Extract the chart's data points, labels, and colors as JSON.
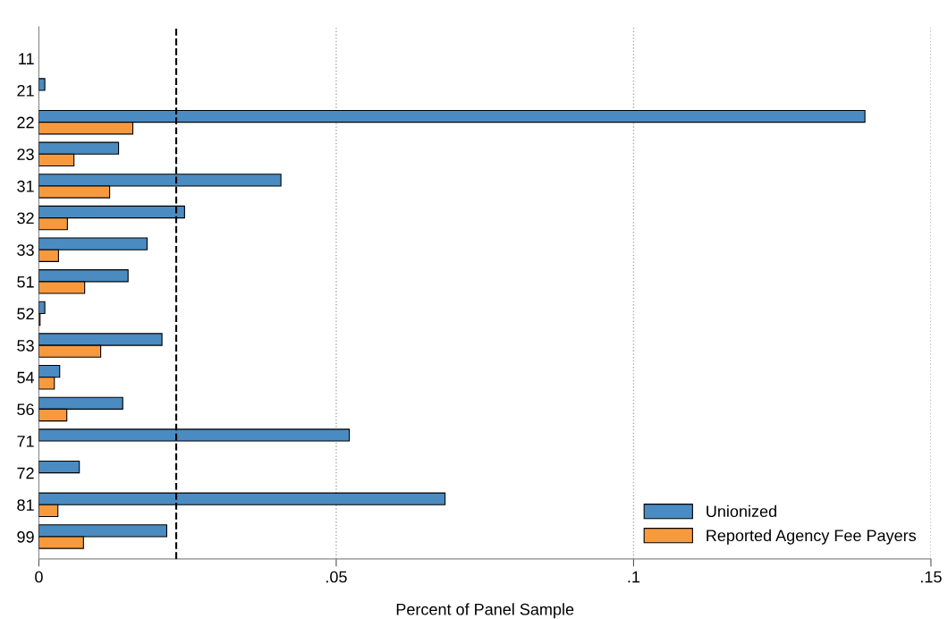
{
  "chart_data": {
    "type": "bar",
    "orientation": "horizontal",
    "xlabel": "Percent of Panel Sample",
    "categories": [
      "11",
      "21",
      "22",
      "23",
      "31",
      "32",
      "33",
      "51",
      "52",
      "53",
      "54",
      "56",
      "71",
      "72",
      "81",
      "99"
    ],
    "series": [
      {
        "name": "Unionized",
        "color": "#4a8bc2",
        "values": [
          0,
          0.001,
          0.1389,
          0.0134,
          0.0407,
          0.0245,
          0.0182,
          0.015,
          0.001,
          0.0207,
          0.0035,
          0.0141,
          0.0522,
          0.0068,
          0.0683,
          0.0215
        ]
      },
      {
        "name": "Reported Agency Fee Payers",
        "color": "#f79a3e",
        "values": [
          0,
          0,
          0.0158,
          0.0059,
          0.0119,
          0.0048,
          0.0033,
          0.0077,
          0.0002,
          0.0104,
          0.0026,
          0.0047,
          0,
          0,
          0.0032,
          0.0075
        ]
      }
    ],
    "xlim": [
      0,
      0.15
    ],
    "xticks": [
      0,
      {
        "value": 0.05,
        "label": ".05"
      },
      {
        "value": 0.1,
        "label": ".1"
      },
      {
        "value": 0.15,
        "label": ".15"
      }
    ],
    "ref_lines": [
      {
        "axis": "x",
        "value": 0.0231,
        "line_style": "dashed",
        "color": "#000000"
      }
    ],
    "grid": "x",
    "legend": "bottom right"
  }
}
